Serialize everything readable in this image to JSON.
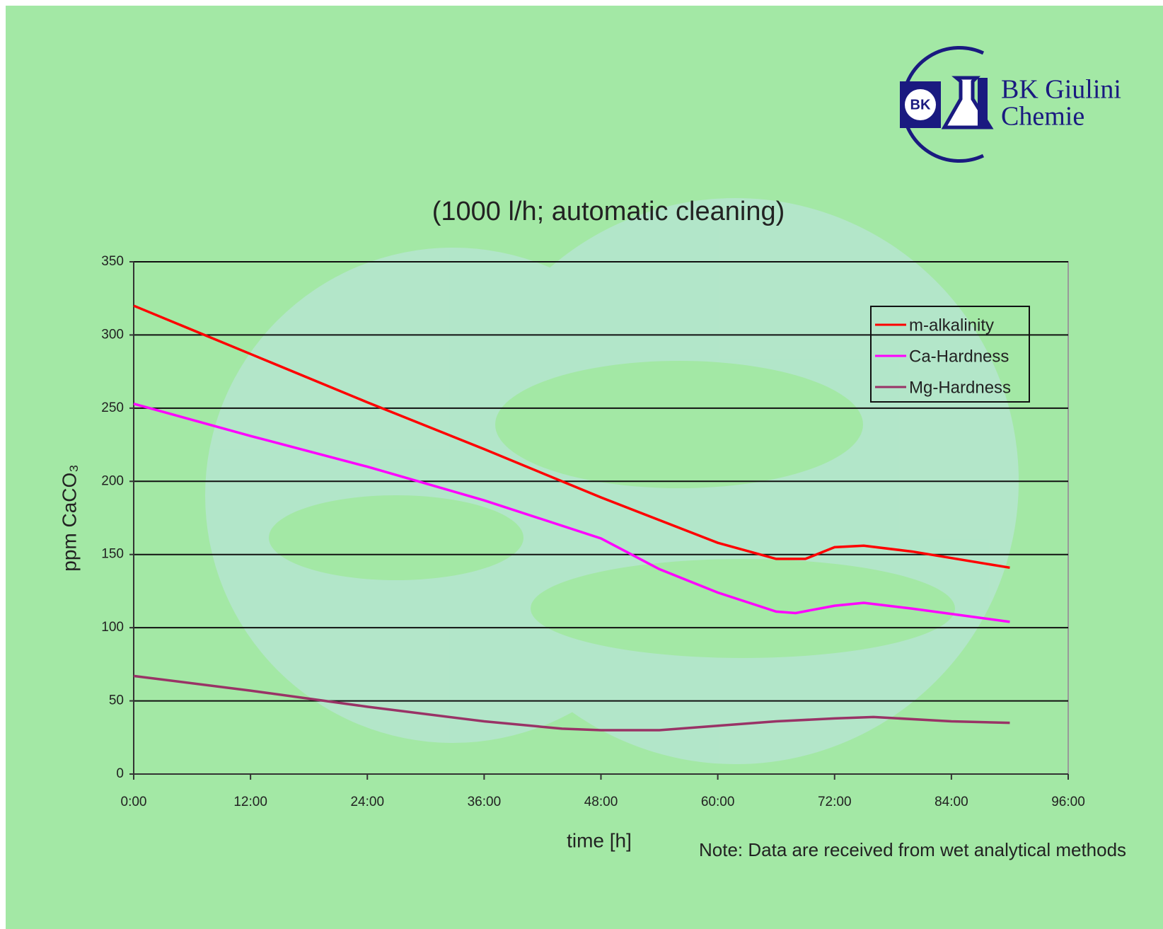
{
  "logo": {
    "badge": "BK",
    "line1": "BK Giulini",
    "line2": "Chemie"
  },
  "note": "Note: Data are received from wet analytical methods",
  "chart_data": {
    "type": "line",
    "title": "(1000 l/h; automatic cleaning)",
    "x_label": "time [h]",
    "y_label": "ppm CaCO₃",
    "xlim": [
      0,
      96
    ],
    "xticks": [
      {
        "value": 0,
        "label": "0:00"
      },
      {
        "value": 12,
        "label": "12:00"
      },
      {
        "value": 24,
        "label": "24:00"
      },
      {
        "value": 36,
        "label": "36:00"
      },
      {
        "value": 48,
        "label": "48:00"
      },
      {
        "value": 60,
        "label": "60:00"
      },
      {
        "value": 72,
        "label": "72:00"
      },
      {
        "value": 84,
        "label": "84:00"
      },
      {
        "value": 96,
        "label": "96:00"
      }
    ],
    "ylim": [
      0,
      350
    ],
    "yticks": [
      0,
      50,
      100,
      150,
      200,
      250,
      300,
      350
    ],
    "grid": true,
    "legend": "upper right",
    "series": [
      {
        "name": "m-alkalinity",
        "color": "#ff0000",
        "x": [
          0,
          12,
          24,
          36,
          48,
          60,
          66,
          69,
          72,
          75,
          80,
          90
        ],
        "values": [
          320,
          287,
          254,
          222,
          189,
          158,
          147,
          147,
          155,
          156,
          152,
          141
        ]
      },
      {
        "name": "Ca-Hardness",
        "color": "#ff00ff",
        "x": [
          0,
          12,
          24,
          36,
          48,
          54,
          60,
          66,
          68,
          72,
          75,
          80,
          90
        ],
        "values": [
          253,
          231,
          210,
          187,
          161,
          140,
          124,
          111,
          110,
          115,
          117,
          113,
          104
        ]
      },
      {
        "name": "Mg-Hardness",
        "color": "#993366",
        "x": [
          0,
          12,
          24,
          36,
          44,
          48,
          54,
          60,
          66,
          72,
          76,
          84,
          90
        ],
        "values": [
          67,
          57,
          46,
          36,
          31,
          30,
          30,
          33,
          36,
          38,
          39,
          36,
          35
        ]
      }
    ]
  }
}
